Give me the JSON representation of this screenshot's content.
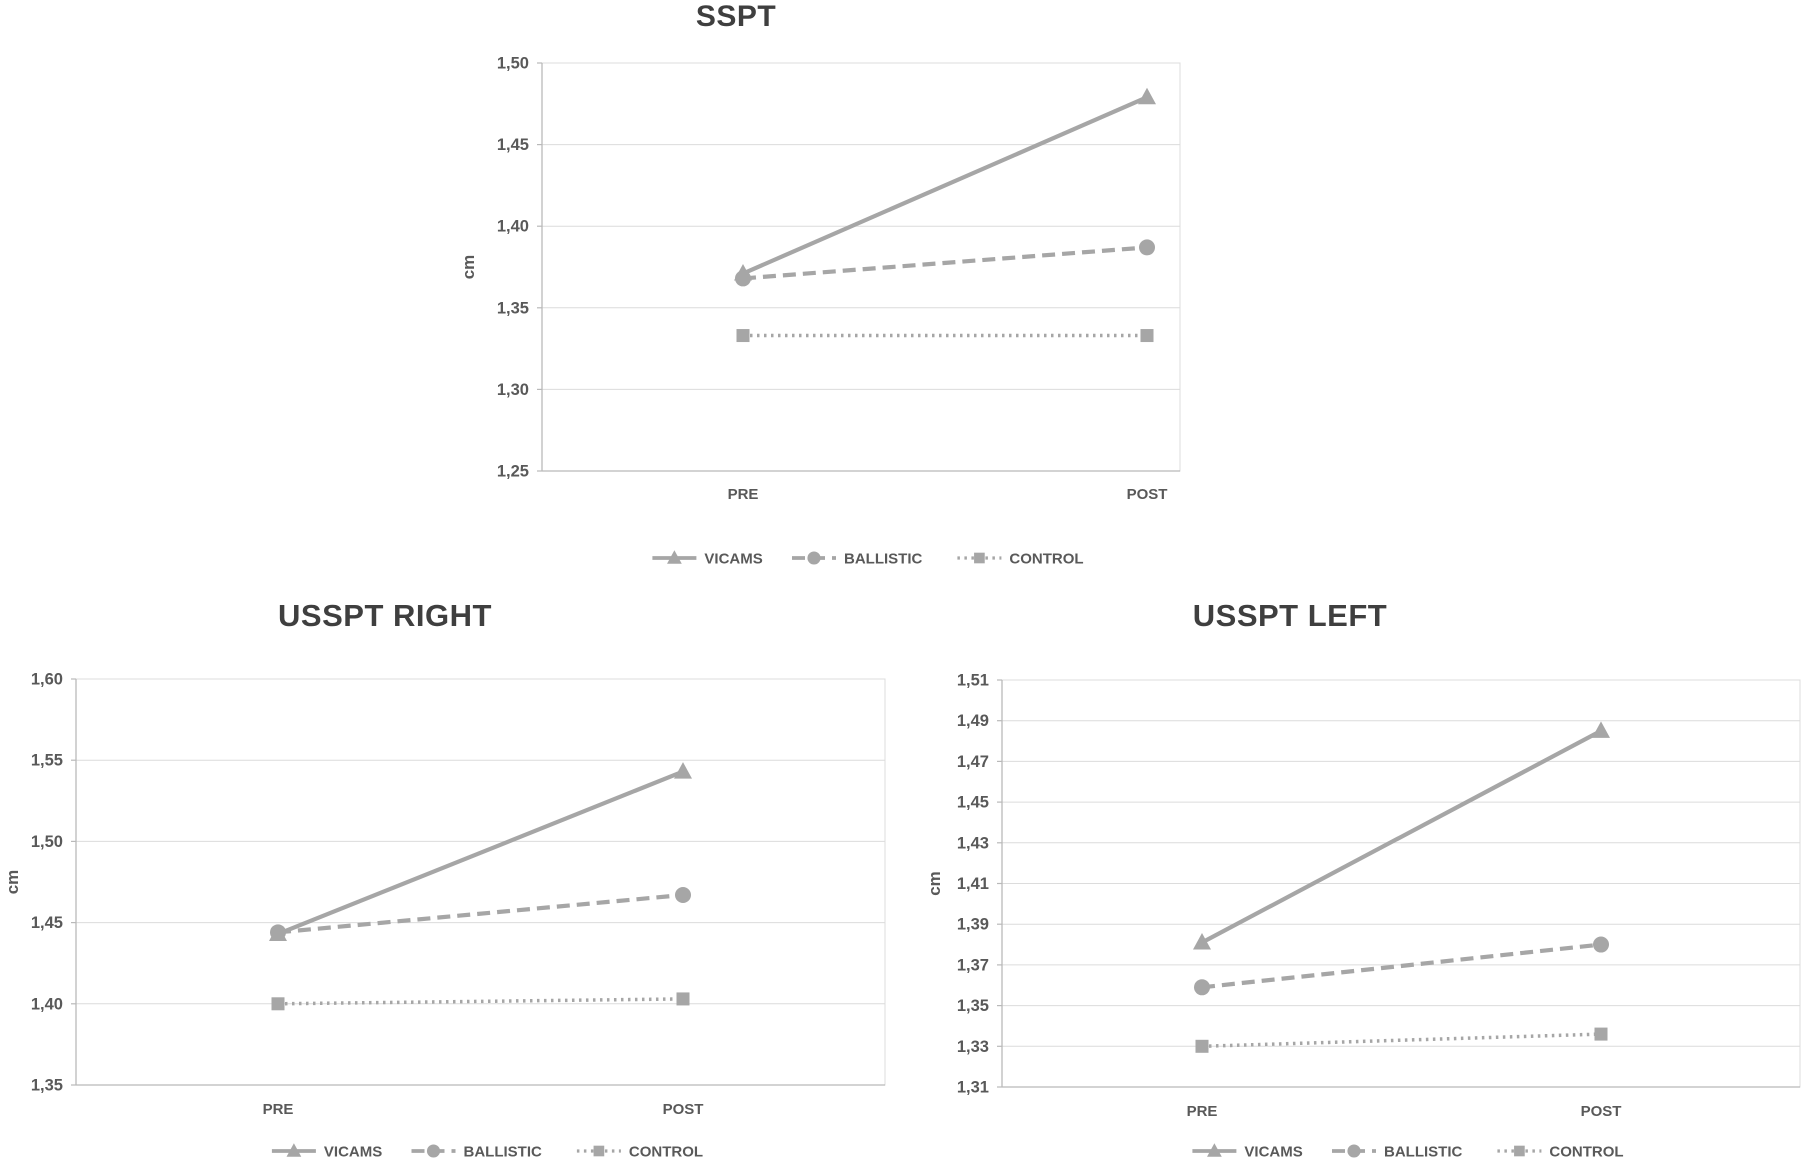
{
  "page": {
    "background": "#ffffff"
  },
  "styles": {
    "series_color": "#a6a6a6",
    "title_color": "#3f3f3f",
    "label_color": "#595959",
    "grid_color": "#dcdcdc",
    "axis_color": "#b9b9b9"
  },
  "chart_data": [
    {
      "type": "line",
      "title": "SSPT",
      "ylabel": "cm",
      "categories": [
        "PRE",
        "POST"
      ],
      "ylim": [
        1.25,
        1.5
      ],
      "ytick_step": 0.05,
      "ytick_labels": [
        "1,50",
        "1,45",
        "1,40",
        "1,35",
        "1,30",
        "1,25"
      ],
      "grid": true,
      "legend_position": "bottom",
      "legend_labels": [
        "VICAMS",
        "BALLISTIC",
        "CONTROL"
      ],
      "series": [
        {
          "name": "VICAMS",
          "marker": "triangle",
          "line_style": "solid",
          "values": [
            1.371,
            1.479
          ]
        },
        {
          "name": "BALLISTIC",
          "marker": "circle",
          "line_style": "dashed",
          "values": [
            1.368,
            1.387
          ]
        },
        {
          "name": "CONTROL",
          "marker": "square",
          "line_style": "dotted",
          "values": [
            1.333,
            1.333
          ]
        }
      ]
    },
    {
      "type": "line",
      "title": "USSPT RIGHT",
      "ylabel": "cm",
      "categories": [
        "PRE",
        "POST"
      ],
      "ylim": [
        1.35,
        1.6
      ],
      "ytick_step": 0.05,
      "ytick_labels": [
        "1,60",
        "1,55",
        "1,50",
        "1,45",
        "1,40",
        "1,35"
      ],
      "grid": true,
      "legend_position": "bottom",
      "legend_labels": [
        "VICAMS",
        "BALLISTIC",
        "CONTROL"
      ],
      "series": [
        {
          "name": "VICAMS",
          "marker": "triangle",
          "line_style": "solid",
          "values": [
            1.443,
            1.543
          ]
        },
        {
          "name": "BALLISTIC",
          "marker": "circle",
          "line_style": "dashed",
          "values": [
            1.444,
            1.467
          ]
        },
        {
          "name": "CONTROL",
          "marker": "square",
          "line_style": "dotted",
          "values": [
            1.4,
            1.403
          ]
        }
      ]
    },
    {
      "type": "line",
      "title": "USSPT LEFT",
      "ylabel": "cm",
      "categories": [
        "PRE",
        "POST"
      ],
      "ylim": [
        1.31,
        1.51
      ],
      "ytick_step": 0.02,
      "ytick_labels": [
        "1,51",
        "1,49",
        "1,47",
        "1,45",
        "1,43",
        "1,41",
        "1,39",
        "1,37",
        "1,35",
        "1,33",
        "1,31"
      ],
      "grid": true,
      "legend_position": "bottom",
      "legend_labels": [
        "VICAMS",
        "BALLISTIC",
        "CONTROL"
      ],
      "series": [
        {
          "name": "VICAMS",
          "marker": "triangle",
          "line_style": "solid",
          "values": [
            1.381,
            1.485
          ]
        },
        {
          "name": "BALLISTIC",
          "marker": "circle",
          "line_style": "dashed",
          "values": [
            1.359,
            1.38
          ]
        },
        {
          "name": "CONTROL",
          "marker": "square",
          "line_style": "dotted",
          "values": [
            1.33,
            1.336
          ]
        }
      ]
    }
  ]
}
